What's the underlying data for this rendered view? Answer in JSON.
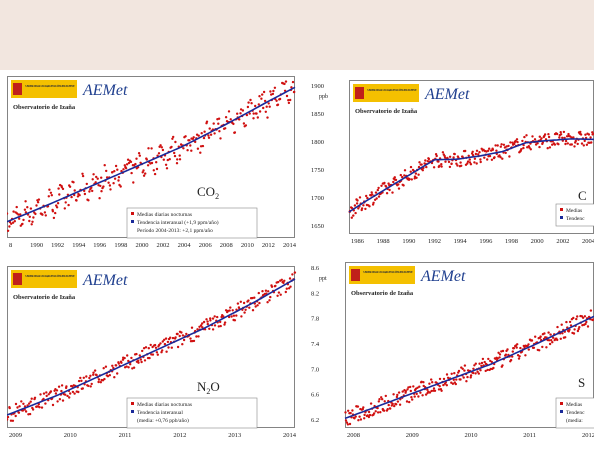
{
  "colors": {
    "band": "#f2e6df",
    "logo_yellow": "#f4c000",
    "logo_red": "#c0201a",
    "aemet_blue": "#1f3f8f",
    "data_red": "#d01010",
    "trend_blue": "#1a2a9a"
  },
  "panels": [
    {
      "id": "co2",
      "logo_text": "AEMet",
      "agency_small": "MINISTERIO DE AGRICULTURA, ALIMENTACIÓN Y MEDIO AMBIENTE",
      "observatory": "Observatorio de Izaña",
      "gas": "CO",
      "gas_sub": "2",
      "legend": [
        "Medias diarias nocturnas",
        "Tendencia interanual (+1,9 ppm/año)",
        "Período 2004-2013: +2,1 ppm/año"
      ],
      "x_ticks": [
        "8",
        "1990",
        "1992",
        "1994",
        "1996",
        "1998",
        "2000",
        "2002",
        "2004",
        "2006",
        "2008",
        "2010",
        "2012",
        "2014"
      ],
      "y_ticks": [],
      "y_unit": ""
    },
    {
      "id": "ch4",
      "logo_text": "AEMet",
      "agency_small": "MINISTERIO DE AGRICULTURA, ALIMENTACIÓN Y MEDIO AMBIENTE",
      "observatory": "Observatorio de Izaña",
      "gas": "C",
      "gas_sub": "",
      "legend": [
        "Medias",
        "Tendenc"
      ],
      "x_ticks": [
        "1986",
        "1988",
        "1990",
        "1992",
        "1994",
        "1996",
        "1998",
        "2000",
        "2002",
        "2004"
      ],
      "y_ticks": [
        "1900",
        "1850",
        "1800",
        "1750",
        "1700",
        "1650"
      ],
      "y_unit": "ppb"
    },
    {
      "id": "n2o",
      "logo_text": "AEMet",
      "agency_small": "MINISTERIO DE AGRICULTURA, ALIMENTACIÓN Y MEDIO AMBIENTE",
      "observatory": "Observatorio de Izaña",
      "gas": "N",
      "gas_sub": "2",
      "gas_tail": "O",
      "legend": [
        "Medias diarias nocturnas",
        "Tendencia interanual",
        "(media: +0,76 ppb/año)"
      ],
      "x_ticks": [
        "2009",
        "2010",
        "2011",
        "2012",
        "2013",
        "2014"
      ],
      "y_ticks": [],
      "y_unit": ""
    },
    {
      "id": "sf6",
      "logo_text": "AEMet",
      "agency_small": "MINISTERIO DE AGRICULTURA, ALIMENTACIÓN Y MEDIO AMBIENTE",
      "observatory": "Observatorio de Izaña",
      "gas": "S",
      "gas_sub": "",
      "legend": [
        "Medias",
        "Tendenc",
        "(media:"
      ],
      "x_ticks": [
        "2008",
        "2009",
        "2010",
        "2011",
        "2012"
      ],
      "y_ticks": [
        "8.6",
        "8.2",
        "7.8",
        "7.4",
        "7.0",
        "6.6",
        "6.2"
      ],
      "y_unit": "ppt"
    }
  ],
  "chart_data": [
    {
      "type": "scatter",
      "title": "",
      "xlabel": "",
      "ylabel": "",
      "xlim": [
        1988.5,
        2014.2
      ],
      "trend": {
        "x": [
          1988.5,
          1992,
          1996,
          2000,
          2004,
          2008,
          2012,
          2014.2
        ],
        "y": [
          0.1,
          0.2,
          0.32,
          0.44,
          0.56,
          0.7,
          0.85,
          0.93
        ]
      },
      "series": [
        {
          "name": "Medias diarias nocturnas",
          "style": "red-dots"
        },
        {
          "name": "Tendencia interanual (+1,9 ppm/año)",
          "style": "blue-line"
        }
      ]
    },
    {
      "type": "scatter",
      "title": "",
      "xlabel": "",
      "ylabel": "ppb",
      "xlim": [
        1984.5,
        2006
      ],
      "ylim": [
        1630,
        1910
      ],
      "trend": {
        "x": [
          1984.5,
          1986,
          1988,
          1990,
          1992,
          1994,
          1996,
          1998,
          2000,
          2002,
          2004,
          2006
        ],
        "y": [
          1670,
          1690,
          1715,
          1740,
          1765,
          1766,
          1772,
          1780,
          1796,
          1800,
          1803,
          1802
        ]
      },
      "series": [
        {
          "name": "Medias",
          "style": "red-dots"
        },
        {
          "name": "Tendenc",
          "style": "blue-line"
        }
      ]
    },
    {
      "type": "scatter",
      "title": "",
      "xlabel": "",
      "ylabel": "",
      "xlim": [
        2008.5,
        2014.3
      ],
      "trend": {
        "x": [
          2008.5,
          2009.5,
          2010.5,
          2011.5,
          2012.5,
          2013.5,
          2014.3
        ],
        "y": [
          0.08,
          0.2,
          0.34,
          0.48,
          0.62,
          0.78,
          0.92
        ]
      },
      "series": [
        {
          "name": "Medias diarias nocturnas",
          "style": "red-dots"
        },
        {
          "name": "Tendencia interanual",
          "style": "blue-line"
        }
      ]
    },
    {
      "type": "scatter",
      "title": "",
      "xlabel": "",
      "ylabel": "ppt",
      "xlim": [
        2007.6,
        2013.4
      ],
      "ylim": [
        6.1,
        8.7
      ],
      "trend": {
        "x": [
          2007.6,
          2009,
          2010,
          2011,
          2012,
          2013.4
        ],
        "y": [
          6.25,
          6.6,
          6.85,
          7.1,
          7.4,
          7.85
        ]
      },
      "series": [
        {
          "name": "Medias",
          "style": "red-dots"
        },
        {
          "name": "Tendenc",
          "style": "blue-line"
        }
      ]
    }
  ]
}
